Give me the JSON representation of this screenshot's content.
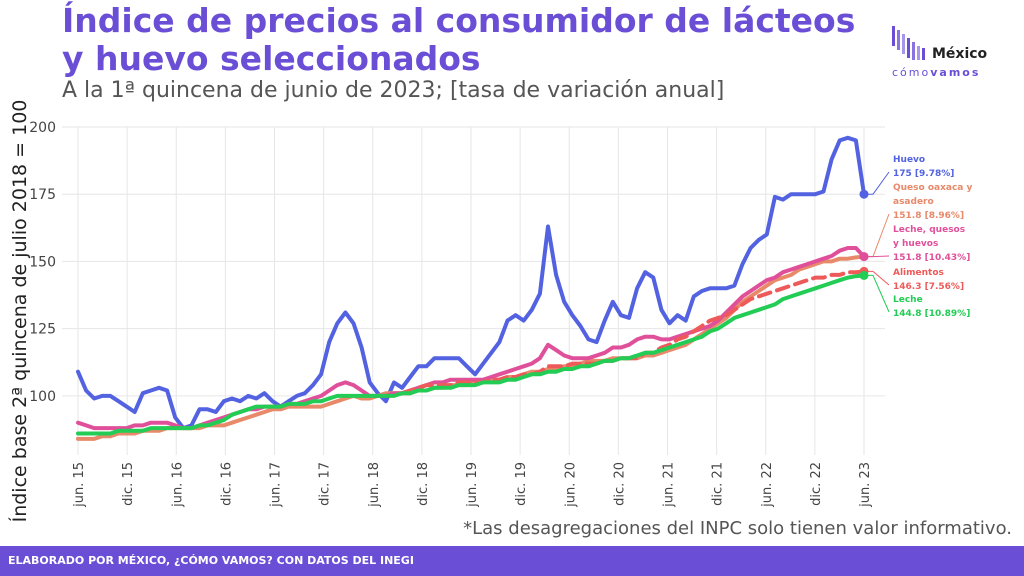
{
  "header": {
    "title": "Índice de precios al consumidor de lácteos y huevo seleccionados",
    "subtitle": "A la 1ª quincena de junio de 2023; [tasa de variación anual]"
  },
  "logo": {
    "name": "México",
    "tag_a": "cómo",
    "tag_b": "vamos"
  },
  "note": "*Las desagregaciones del INPC solo tienen valor informativo.",
  "footer": "ELABORADO POR MÉXICO, ¿CÓMO VAMOS? CON DATOS DEL INEGI",
  "colors": {
    "title": "#6a4fd6",
    "footer_bg": "#6a4fd6",
    "huevo": "#5262e0",
    "queso": "#e8896a",
    "leche_quesos_huevos": "#e0509a",
    "alimentos": "#ee5a5a",
    "leche": "#22cc55",
    "grid": "#e6e6e6"
  },
  "chart_data": {
    "type": "line",
    "title": "Índice de precios al consumidor de lácteos y huevo seleccionados",
    "subtitle": "A la 1ª quincena de junio de 2023; [tasa de variación anual]",
    "xlabel": "",
    "ylabel": "Índice base 2ª quincena de julio 2018 = 100",
    "ylim": [
      78,
      200
    ],
    "yticks": [
      100,
      125,
      150,
      175,
      200
    ],
    "grid": true,
    "x_ticks": [
      "jun. 15",
      "dic. 15",
      "jun. 16",
      "dic. 16",
      "jun. 17",
      "dic. 17",
      "jun. 18",
      "dic. 18",
      "jun. 19",
      "dic. 19",
      "jun. 20",
      "dic. 20",
      "jun. 21",
      "dic. 21",
      "jun. 22",
      "dic. 22",
      "jun. 23"
    ],
    "x_start": "2015-06",
    "x_end": "2023-06",
    "series": [
      {
        "name": "Huevo",
        "end_label": "175 [9.78%]",
        "color": "#5262e0",
        "dashed": false,
        "values": [
          109,
          102,
          99,
          100,
          100,
          98,
          96,
          94,
          101,
          102,
          103,
          102,
          92,
          88,
          89,
          95,
          95,
          94,
          98,
          99,
          98,
          100,
          99,
          101,
          98,
          96,
          98,
          100,
          101,
          104,
          108,
          120,
          127,
          131,
          127,
          118,
          105,
          101,
          98,
          105,
          103,
          107,
          111,
          111,
          114,
          114,
          114,
          114,
          111,
          108,
          112,
          116,
          120,
          128,
          130,
          128,
          132,
          138,
          163,
          145,
          135,
          130,
          126,
          121,
          120,
          128,
          135,
          130,
          129,
          140,
          146,
          144,
          132,
          127,
          130,
          128,
          137,
          139,
          140,
          140,
          140,
          141,
          149,
          155,
          158,
          160,
          174,
          173,
          175,
          175,
          175,
          175,
          176,
          188,
          195,
          196,
          195,
          175
        ]
      },
      {
        "name": "Queso oaxaca y asadero",
        "end_label": "151.8 [8.96%]",
        "color": "#e8896a",
        "dashed": false,
        "values": [
          84,
          84,
          84,
          85,
          85,
          86,
          86,
          86,
          87,
          87,
          87,
          88,
          88,
          88,
          88,
          88,
          89,
          89,
          89,
          90,
          91,
          92,
          93,
          94,
          95,
          95,
          96,
          96,
          96,
          96,
          96,
          97,
          98,
          99,
          100,
          99,
          99,
          100,
          101,
          101,
          101,
          101,
          102,
          102,
          103,
          103,
          104,
          104,
          104,
          105,
          105,
          106,
          106,
          107,
          107,
          108,
          109,
          109,
          110,
          110,
          111,
          111,
          112,
          113,
          113,
          113,
          114,
          114,
          114,
          114,
          115,
          115,
          116,
          117,
          118,
          119,
          121,
          123,
          125,
          127,
          129,
          132,
          135,
          137,
          139,
          141,
          143,
          144,
          145,
          147,
          148,
          149,
          150,
          150,
          151,
          151,
          151.5,
          151.8
        ]
      },
      {
        "name": "Leche, quesos y huevos",
        "end_label": "151.8 [10.43%]",
        "color": "#e0509a",
        "dashed": false,
        "values": [
          90,
          89,
          88,
          88,
          88,
          88,
          88,
          89,
          89,
          90,
          90,
          90,
          89,
          88,
          88,
          89,
          90,
          91,
          92,
          93,
          94,
          95,
          95,
          96,
          96,
          96,
          97,
          97,
          98,
          99,
          100,
          102,
          104,
          105,
          104,
          102,
          100,
          100,
          100,
          101,
          101,
          102,
          103,
          104,
          105,
          105,
          106,
          106,
          106,
          106,
          106,
          107,
          108,
          109,
          110,
          111,
          112,
          114,
          119,
          117,
          115,
          114,
          114,
          114,
          115,
          116,
          118,
          118,
          119,
          121,
          122,
          122,
          121,
          121,
          122,
          123,
          124,
          125,
          126,
          128,
          131,
          134,
          137,
          139,
          141,
          143,
          144,
          146,
          147,
          148,
          149,
          150,
          151,
          152,
          154,
          155,
          155,
          151.8
        ]
      },
      {
        "name": "Alimentos",
        "end_label": "146.3 [7.56%]",
        "color": "#ee5a5a",
        "dashed": true,
        "values": [
          null,
          null,
          null,
          null,
          null,
          null,
          null,
          null,
          null,
          null,
          null,
          null,
          null,
          null,
          null,
          null,
          null,
          null,
          null,
          null,
          null,
          null,
          null,
          null,
          null,
          null,
          null,
          null,
          null,
          null,
          null,
          null,
          null,
          null,
          null,
          null,
          null,
          null,
          null,
          null,
          101,
          102,
          103,
          104,
          104,
          104,
          104,
          105,
          105,
          105,
          105,
          106,
          106,
          107,
          107,
          108,
          108,
          109,
          111,
          111,
          111,
          112,
          112,
          112,
          112,
          113,
          113,
          114,
          114,
          114,
          116,
          116,
          118,
          119,
          121,
          122,
          124,
          126,
          128,
          129,
          130,
          132,
          134,
          136,
          137,
          138,
          139,
          140,
          141,
          142,
          143,
          144,
          144,
          145,
          145,
          146,
          146,
          146.3
        ]
      },
      {
        "name": "Leche",
        "end_label": "144.8 [10.89%]",
        "color": "#22cc55",
        "dashed": false,
        "values": [
          86,
          86,
          86,
          86,
          86,
          87,
          87,
          87,
          87,
          88,
          88,
          88,
          88,
          88,
          88,
          89,
          89,
          90,
          91,
          93,
          94,
          95,
          96,
          96,
          96,
          96,
          97,
          97,
          97,
          98,
          98,
          99,
          100,
          100,
          100,
          100,
          100,
          100,
          100,
          100,
          101,
          101,
          102,
          102,
          103,
          103,
          103,
          104,
          104,
          104,
          105,
          105,
          105,
          106,
          106,
          107,
          108,
          108,
          109,
          109,
          110,
          110,
          111,
          111,
          112,
          113,
          113,
          114,
          114,
          115,
          116,
          116,
          117,
          118,
          119,
          120,
          121,
          122,
          124,
          125,
          127,
          129,
          130,
          131,
          132,
          133,
          134,
          136,
          137,
          138,
          139,
          140,
          141,
          142,
          143,
          144,
          144.5,
          144.8
        ]
      }
    ]
  }
}
